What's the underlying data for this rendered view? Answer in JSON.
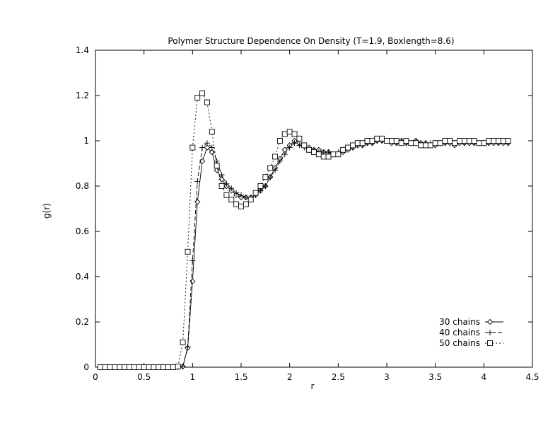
{
  "chart_data": {
    "type": "line",
    "title": "Polymer Structure Dependence On Density (T=1.9, Boxlength=8.6)",
    "xlabel": "r",
    "ylabel": "g(r)",
    "xlim": [
      0,
      4.5
    ],
    "ylim": [
      0,
      1.4
    ],
    "xticks": [
      0,
      0.5,
      1,
      1.5,
      2,
      2.5,
      3,
      3.5,
      4,
      4.5
    ],
    "xtick_labels": [
      "0",
      "0.5",
      "1",
      "1.5",
      "2",
      "2.5",
      "3",
      "3.5",
      "4",
      "4.5"
    ],
    "yticks": [
      0,
      0.2,
      0.4,
      0.6,
      0.8,
      1.0,
      1.2,
      1.4
    ],
    "ytick_labels": [
      "0",
      "0.2",
      "0.4",
      "0.6",
      "0.8",
      "1",
      "1.2",
      "1.4"
    ],
    "grid": false,
    "legend_position": "bottom-right",
    "series": [
      {
        "name": "30 chains",
        "marker": "diamond",
        "dash": "",
        "x": [
          0.05,
          0.1,
          0.15,
          0.2,
          0.25,
          0.3,
          0.35,
          0.4,
          0.45,
          0.5,
          0.55,
          0.6,
          0.65,
          0.7,
          0.75,
          0.8,
          0.85,
          0.9,
          0.95,
          1.0,
          1.05,
          1.1,
          1.15,
          1.2,
          1.25,
          1.3,
          1.35,
          1.4,
          1.45,
          1.5,
          1.55,
          1.6,
          1.65,
          1.7,
          1.75,
          1.8,
          1.85,
          1.9,
          1.95,
          2.0,
          2.05,
          2.1,
          2.15,
          2.2,
          2.25,
          2.3,
          2.35,
          2.4,
          2.45,
          2.5,
          2.55,
          2.6,
          2.65,
          2.7,
          2.75,
          2.8,
          2.85,
          2.9,
          2.95,
          3.0,
          3.05,
          3.1,
          3.15,
          3.2,
          3.25,
          3.3,
          3.35,
          3.4,
          3.45,
          3.5,
          3.55,
          3.6,
          3.65,
          3.7,
          3.75,
          3.8,
          3.85,
          3.9,
          3.95,
          4.0,
          4.05,
          4.1,
          4.15,
          4.2,
          4.25
        ],
        "y": [
          0,
          0,
          0,
          0,
          0,
          0,
          0,
          0,
          0,
          0,
          0,
          0,
          0,
          0,
          0,
          0,
          0,
          0.003,
          0.085,
          0.38,
          0.73,
          0.91,
          0.97,
          0.95,
          0.87,
          0.83,
          0.8,
          0.78,
          0.76,
          0.75,
          0.75,
          0.75,
          0.76,
          0.78,
          0.8,
          0.84,
          0.88,
          0.92,
          0.96,
          0.98,
          1.0,
          0.99,
          0.98,
          0.97,
          0.96,
          0.96,
          0.95,
          0.95,
          0.94,
          0.94,
          0.95,
          0.96,
          0.97,
          0.98,
          0.98,
          0.99,
          0.99,
          1.0,
          1.0,
          1.0,
          0.99,
          0.99,
          1.0,
          0.99,
          0.99,
          1.0,
          0.99,
          0.99,
          0.98,
          0.98,
          0.99,
          0.99,
          0.99,
          0.98,
          0.99,
          0.99,
          0.99,
          0.99,
          0.99,
          0.99,
          0.99,
          0.99,
          0.99,
          0.99,
          0.99
        ]
      },
      {
        "name": "40 chains",
        "marker": "plus",
        "dash": "6,3",
        "x": [
          0.05,
          0.1,
          0.15,
          0.2,
          0.25,
          0.3,
          0.35,
          0.4,
          0.45,
          0.5,
          0.55,
          0.6,
          0.65,
          0.7,
          0.75,
          0.8,
          0.85,
          0.9,
          0.95,
          1.0,
          1.05,
          1.1,
          1.15,
          1.2,
          1.25,
          1.3,
          1.35,
          1.4,
          1.45,
          1.5,
          1.55,
          1.6,
          1.65,
          1.7,
          1.75,
          1.8,
          1.85,
          1.9,
          1.95,
          2.0,
          2.05,
          2.1,
          2.15,
          2.2,
          2.25,
          2.3,
          2.35,
          2.4,
          2.45,
          2.5,
          2.55,
          2.6,
          2.65,
          2.7,
          2.75,
          2.8,
          2.85,
          2.9,
          2.95,
          3.0,
          3.05,
          3.1,
          3.15,
          3.2,
          3.25,
          3.3,
          3.35,
          3.4,
          3.45,
          3.5,
          3.55,
          3.6,
          3.65,
          3.7,
          3.75,
          3.8,
          3.85,
          3.9,
          3.95,
          4.0,
          4.05,
          4.1,
          4.15,
          4.2,
          4.25
        ],
        "y": [
          0,
          0,
          0,
          0,
          0,
          0,
          0,
          0,
          0,
          0,
          0,
          0,
          0,
          0,
          0,
          0,
          0,
          0.003,
          0.09,
          0.47,
          0.82,
          0.97,
          0.99,
          0.97,
          0.91,
          0.85,
          0.81,
          0.79,
          0.77,
          0.76,
          0.75,
          0.75,
          0.76,
          0.78,
          0.8,
          0.84,
          0.87,
          0.91,
          0.94,
          0.97,
          0.99,
          0.98,
          0.97,
          0.96,
          0.96,
          0.95,
          0.95,
          0.95,
          0.94,
          0.95,
          0.96,
          0.97,
          0.97,
          0.98,
          0.98,
          0.99,
          0.99,
          1.0,
          1.0,
          1.0,
          1.0,
          0.99,
          1.0,
          0.99,
          0.99,
          1.0,
          0.99,
          0.99,
          0.99,
          0.99,
          0.99,
          0.99,
          1.0,
          0.99,
          1.0,
          0.99,
          1.0,
          0.99,
          0.99,
          0.99,
          0.99,
          1.0,
          0.99,
          1.0,
          0.99
        ]
      },
      {
        "name": "50 chains",
        "marker": "square",
        "dash": "2,3",
        "x": [
          0.05,
          0.1,
          0.15,
          0.2,
          0.25,
          0.3,
          0.35,
          0.4,
          0.45,
          0.5,
          0.55,
          0.6,
          0.65,
          0.7,
          0.75,
          0.8,
          0.85,
          0.9,
          0.95,
          1.0,
          1.05,
          1.1,
          1.15,
          1.2,
          1.25,
          1.3,
          1.35,
          1.4,
          1.45,
          1.5,
          1.55,
          1.6,
          1.65,
          1.7,
          1.75,
          1.8,
          1.85,
          1.9,
          1.95,
          2.0,
          2.05,
          2.1,
          2.15,
          2.2,
          2.25,
          2.3,
          2.35,
          2.4,
          2.45,
          2.5,
          2.55,
          2.6,
          2.65,
          2.7,
          2.75,
          2.8,
          2.85,
          2.9,
          2.95,
          3.0,
          3.05,
          3.1,
          3.15,
          3.2,
          3.25,
          3.3,
          3.35,
          3.4,
          3.45,
          3.5,
          3.55,
          3.6,
          3.65,
          3.7,
          3.75,
          3.8,
          3.85,
          3.9,
          3.95,
          4.0,
          4.05,
          4.1,
          4.15,
          4.2,
          4.25
        ],
        "y": [
          0,
          0,
          0,
          0,
          0,
          0,
          0,
          0,
          0,
          0,
          0,
          0,
          0,
          0,
          0,
          0,
          0.003,
          0.11,
          0.51,
          0.97,
          1.19,
          1.21,
          1.17,
          1.04,
          0.89,
          0.8,
          0.76,
          0.74,
          0.72,
          0.71,
          0.72,
          0.74,
          0.77,
          0.8,
          0.84,
          0.88,
          0.93,
          1.0,
          1.03,
          1.04,
          1.03,
          1.01,
          0.98,
          0.96,
          0.95,
          0.94,
          0.93,
          0.93,
          0.94,
          0.94,
          0.96,
          0.97,
          0.98,
          0.99,
          0.99,
          1.0,
          1.0,
          1.01,
          1.01,
          1.0,
          1.0,
          1.0,
          0.99,
          1.0,
          0.99,
          0.99,
          0.98,
          0.98,
          0.98,
          0.99,
          0.99,
          1.0,
          1.0,
          0.99,
          1.0,
          1.0,
          1.0,
          1.0,
          0.99,
          0.99,
          1.0,
          1.0,
          1.0,
          1.0,
          1.0
        ]
      }
    ]
  }
}
